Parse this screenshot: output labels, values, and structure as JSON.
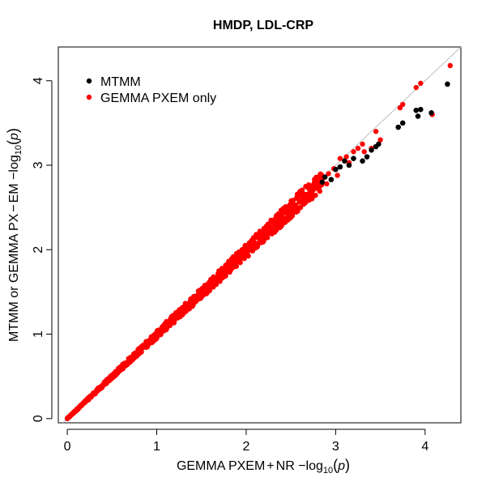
{
  "chart_data": {
    "type": "scatter",
    "title": "HMDP, LDL-CRP",
    "xlabel": {
      "prefix": "GEMMA PXEM",
      "plus": "+",
      "mid": "NR  −log",
      "sub": "10",
      "paren_open": "(",
      "var": "p",
      "paren_close": ")"
    },
    "ylabel": {
      "prefix": "MTMM or GEMMA PX",
      "minus": "−",
      "mid": "EM  −log",
      "sub": "10",
      "paren_open": "(",
      "var": "p",
      "paren_close": ")"
    },
    "xlim": [
      -0.1,
      4.4
    ],
    "ylim": [
      -0.05,
      4.4
    ],
    "x_ticks": [
      0,
      1,
      2,
      3,
      4
    ],
    "y_ticks": [
      0,
      1,
      2,
      3,
      4
    ],
    "x_tick_labels": [
      "0",
      "1",
      "2",
      "3",
      "4"
    ],
    "y_tick_labels": [
      "0",
      "1",
      "2",
      "3",
      "4"
    ],
    "reference_line": {
      "slope": 1,
      "intercept": 0,
      "color": "#bebebe"
    },
    "legend": {
      "placement": "top-left",
      "entries": [
        "MTMM",
        "GEMMA PXEM only"
      ]
    },
    "series": [
      {
        "name": "MTMM",
        "color": "#000000",
        "points": [
          [
            0.0,
            0.0
          ],
          [
            0.05,
            0.05
          ],
          [
            0.3,
            0.3
          ],
          [
            0.8,
            0.8
          ],
          [
            1.5,
            1.49
          ],
          [
            2.5,
            2.48
          ],
          [
            2.85,
            2.8
          ],
          [
            2.88,
            2.86
          ],
          [
            2.95,
            2.83
          ],
          [
            3.0,
            2.95
          ],
          [
            3.05,
            2.98
          ],
          [
            3.1,
            3.05
          ],
          [
            3.15,
            3.0
          ],
          [
            3.2,
            3.08
          ],
          [
            3.3,
            3.05
          ],
          [
            3.35,
            3.1
          ],
          [
            3.4,
            3.18
          ],
          [
            3.45,
            3.22
          ],
          [
            3.48,
            3.25
          ],
          [
            3.7,
            3.45
          ],
          [
            3.75,
            3.5
          ],
          [
            3.9,
            3.65
          ],
          [
            3.92,
            3.58
          ],
          [
            3.95,
            3.66
          ],
          [
            4.07,
            3.62
          ],
          [
            4.25,
            3.96
          ]
        ]
      },
      {
        "name": "GEMMA PXEM only",
        "color": "#ff0000",
        "band": {
          "from": 0.0,
          "to": 2.85,
          "step": 0.012,
          "spread_base": 0.004,
          "spread_growth": 0.04,
          "bias": -0.02
        },
        "points": [
          [
            2.82,
            2.75
          ],
          [
            2.86,
            2.85
          ],
          [
            2.9,
            2.78
          ],
          [
            2.92,
            2.9
          ],
          [
            2.98,
            2.96
          ],
          [
            3.02,
            2.88
          ],
          [
            3.05,
            3.08
          ],
          [
            3.12,
            3.1
          ],
          [
            3.15,
            3.03
          ],
          [
            3.2,
            3.16
          ],
          [
            3.25,
            3.2
          ],
          [
            3.3,
            3.25
          ],
          [
            3.32,
            3.16
          ],
          [
            3.4,
            3.2
          ],
          [
            3.45,
            3.4
          ],
          [
            3.5,
            3.3
          ],
          [
            3.72,
            3.68
          ],
          [
            3.75,
            3.72
          ],
          [
            3.9,
            3.92
          ],
          [
            3.95,
            3.97
          ],
          [
            4.08,
            3.6
          ],
          [
            4.28,
            4.18
          ]
        ]
      }
    ]
  }
}
